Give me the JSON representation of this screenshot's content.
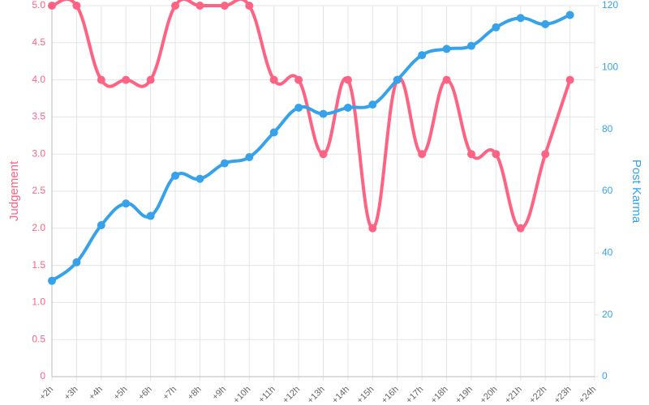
{
  "chart_data": {
    "type": "line",
    "categories": [
      "+2h",
      "+3h",
      "+4h",
      "+5h",
      "+6h",
      "+7h",
      "+8h",
      "+9h",
      "+10h",
      "+11h",
      "+12h",
      "+13h",
      "+14h",
      "+15h",
      "+16h",
      "+17h",
      "+18h",
      "+19h",
      "+20h",
      "+21h",
      "+22h",
      "+23h",
      "+24h"
    ],
    "series": [
      {
        "name": "Judgement",
        "color": "#ff6384",
        "axis": "y",
        "values": [
          5,
          5,
          4,
          4,
          4,
          5,
          5,
          5,
          5,
          4,
          4,
          3,
          4,
          2,
          4,
          3,
          4,
          3,
          3,
          2,
          3,
          4,
          null
        ]
      },
      {
        "name": "Post Karma",
        "color": "#36a2eb",
        "axis": "y2",
        "values": [
          31,
          37,
          49,
          56,
          52,
          65,
          64,
          69,
          71,
          79,
          87,
          85,
          87,
          88,
          96,
          104,
          106,
          107,
          113,
          116,
          114,
          117,
          null
        ]
      }
    ],
    "ylabel": "Judgement",
    "y2label": "Post Karma",
    "ylim": [
      0,
      5
    ],
    "yticks": [
      0,
      0.5,
      {
        "value": 1,
        "label": "1.0"
      },
      1.5,
      {
        "value": 2,
        "label": "2.0"
      },
      2.5,
      {
        "value": 3,
        "label": "3.0"
      },
      3.5,
      {
        "value": 4,
        "label": "4.0"
      },
      4.5,
      {
        "value": 5,
        "label": "5.0"
      }
    ],
    "y2lim": [
      0,
      120
    ],
    "y2ticks": [
      0,
      20,
      40,
      60,
      80,
      100,
      120
    ],
    "grid": true
  }
}
